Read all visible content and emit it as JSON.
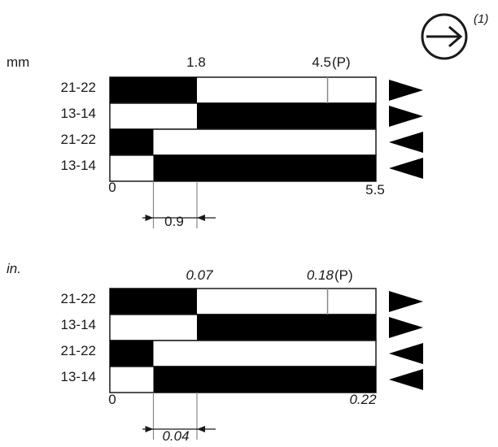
{
  "direction_icon": {
    "icon": "circled-right-arrow-icon",
    "note": "(1)"
  },
  "panels": [
    {
      "id": "mm",
      "unit_label": "mm",
      "italic": false,
      "top_labels": [
        "1.8",
        "4.5",
        "(P)"
      ],
      "scale_start": "0",
      "scale_end": "5.5",
      "dimension": "0.9",
      "rows": [
        {
          "label": "21-22",
          "arrow": "right"
        },
        {
          "label": "13-14",
          "arrow": "right"
        },
        {
          "label": "21-22",
          "arrow": "left"
        },
        {
          "label": "13-14",
          "arrow": "left"
        }
      ]
    },
    {
      "id": "in",
      "unit_label": "in.",
      "italic": true,
      "top_labels": [
        "0.07",
        "0.18",
        "(P)"
      ],
      "scale_start": "0",
      "scale_end": "0.22",
      "dimension": "0.04",
      "rows": [
        {
          "label": "21-22",
          "arrow": "right"
        },
        {
          "label": "13-14",
          "arrow": "right"
        },
        {
          "label": "21-22",
          "arrow": "left"
        },
        {
          "label": "13-14",
          "arrow": "left"
        }
      ]
    }
  ],
  "contact_states": {
    "travel_mm": 5.5,
    "rows": [
      {
        "closed_from": 0,
        "closed_to": 1.8
      },
      {
        "closed_from": 1.8,
        "closed_to": 5.5
      },
      {
        "closed_from": 0,
        "closed_to": 0.9
      },
      {
        "closed_from": 0.9,
        "closed_to": 5.5
      }
    ],
    "positive_opening_mm": 4.5
  },
  "colors": {
    "closed": "#000000",
    "open": "#ffffff",
    "line": "#1a1a1a",
    "guide": "#888888"
  }
}
